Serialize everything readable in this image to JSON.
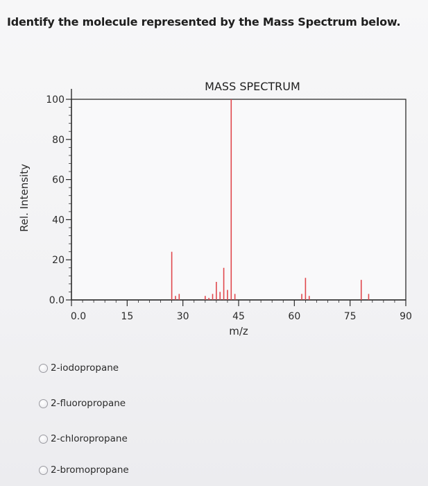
{
  "question": "Identify the molecule represented by the Mass Spectrum below.",
  "chart_data": {
    "type": "bar",
    "title": "MASS SPECTRUM",
    "xlabel": "m/z",
    "ylabel": "Rel. Intensity",
    "xlim": [
      0,
      90
    ],
    "ylim": [
      0,
      100
    ],
    "xticks": [
      "0.0",
      "15",
      "30",
      "45",
      "60",
      "75",
      "90"
    ],
    "yticks": [
      "0.0",
      "20",
      "40",
      "60",
      "80",
      "100"
    ],
    "bar_color": "#e0474c",
    "peaks": [
      {
        "x": 27,
        "y": 24
      },
      {
        "x": 28,
        "y": 2
      },
      {
        "x": 29,
        "y": 3
      },
      {
        "x": 36,
        "y": 2
      },
      {
        "x": 37,
        "y": 1
      },
      {
        "x": 38,
        "y": 3
      },
      {
        "x": 39,
        "y": 9
      },
      {
        "x": 40,
        "y": 4
      },
      {
        "x": 41,
        "y": 16
      },
      {
        "x": 42,
        "y": 5
      },
      {
        "x": 43,
        "y": 100
      },
      {
        "x": 44,
        "y": 3
      },
      {
        "x": 62,
        "y": 3
      },
      {
        "x": 63,
        "y": 11
      },
      {
        "x": 64,
        "y": 2
      },
      {
        "x": 78,
        "y": 10
      },
      {
        "x": 80,
        "y": 3
      }
    ]
  },
  "options": [
    {
      "label": "2-iodopropane"
    },
    {
      "label": "2-fluoropropane"
    },
    {
      "label": "2-chloropropane"
    },
    {
      "label": "2-bromopropane"
    }
  ]
}
